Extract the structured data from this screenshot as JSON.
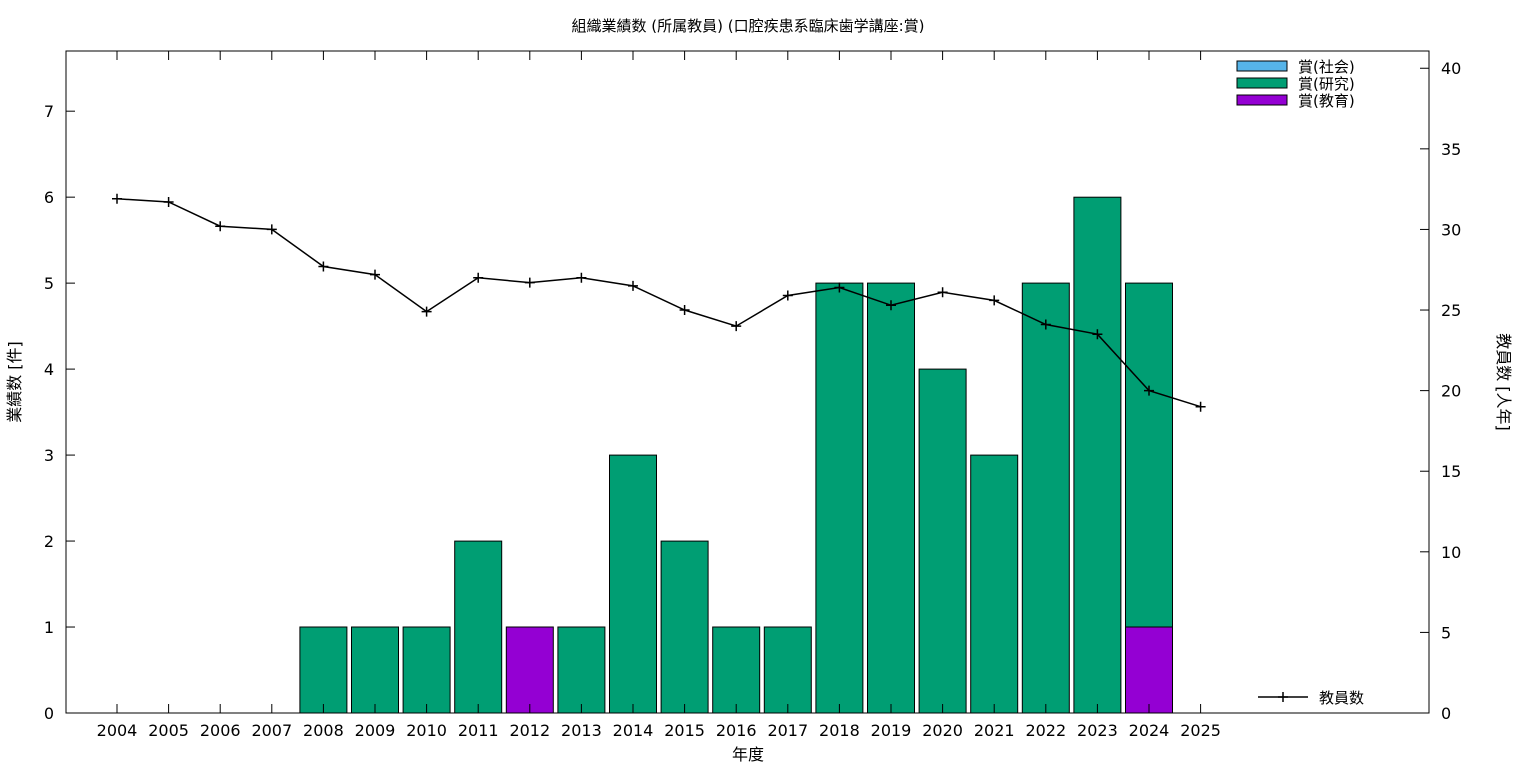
{
  "chart_data": {
    "type": "bar",
    "title": "組織業績数 (所属教員) (口腔疾患系臨床歯学講座:賞)",
    "xlabel": "年度",
    "ylabel": "業績数 [件]",
    "y2label": "教員数 [人年]",
    "categories": [
      "2004",
      "2005",
      "2006",
      "2007",
      "2008",
      "2009",
      "2010",
      "2011",
      "2012",
      "2013",
      "2014",
      "2015",
      "2016",
      "2017",
      "2018",
      "2019",
      "2020",
      "2021",
      "2022",
      "2023",
      "2024",
      "2025"
    ],
    "ylim": [
      0,
      7.7
    ],
    "y2lim": [
      0,
      41.07
    ],
    "yticks": [
      0,
      1,
      2,
      3,
      4,
      5,
      6,
      7
    ],
    "y2ticks": [
      0,
      5,
      10,
      15,
      20,
      25,
      30,
      35,
      40
    ],
    "stacked": true,
    "legend_position": "top-right",
    "series": [
      {
        "name": "賞(社会)",
        "color": "#56b4e9",
        "values": [
          0,
          0,
          0,
          0,
          0,
          0,
          0,
          0,
          0,
          0,
          0,
          0,
          0,
          0,
          0,
          0,
          0,
          0,
          0,
          0,
          0,
          0
        ]
      },
      {
        "name": "賞(研究)",
        "color": "#009e73",
        "values": [
          0,
          0,
          0,
          0,
          1,
          1,
          1,
          2,
          0,
          1,
          3,
          2,
          1,
          1,
          5,
          5,
          4,
          3,
          5,
          6,
          4,
          0
        ]
      },
      {
        "name": "賞(教育)",
        "color": "#9400d3",
        "values": [
          0,
          0,
          0,
          0,
          0,
          0,
          0,
          0,
          1,
          0,
          0,
          0,
          0,
          0,
          0,
          0,
          0,
          0,
          0,
          0,
          1,
          0
        ]
      }
    ],
    "line_series": {
      "name": "教員数",
      "color": "#000000",
      "axis": "y2",
      "values": [
        31.9,
        31.7,
        30.2,
        30.0,
        27.7,
        27.2,
        24.9,
        27.0,
        26.7,
        27.0,
        26.5,
        25.0,
        24.0,
        25.9,
        26.4,
        25.3,
        26.1,
        25.6,
        24.1,
        23.5,
        20.0,
        19.0
      ]
    },
    "bar_stack_order": [
      2,
      1,
      0
    ]
  }
}
